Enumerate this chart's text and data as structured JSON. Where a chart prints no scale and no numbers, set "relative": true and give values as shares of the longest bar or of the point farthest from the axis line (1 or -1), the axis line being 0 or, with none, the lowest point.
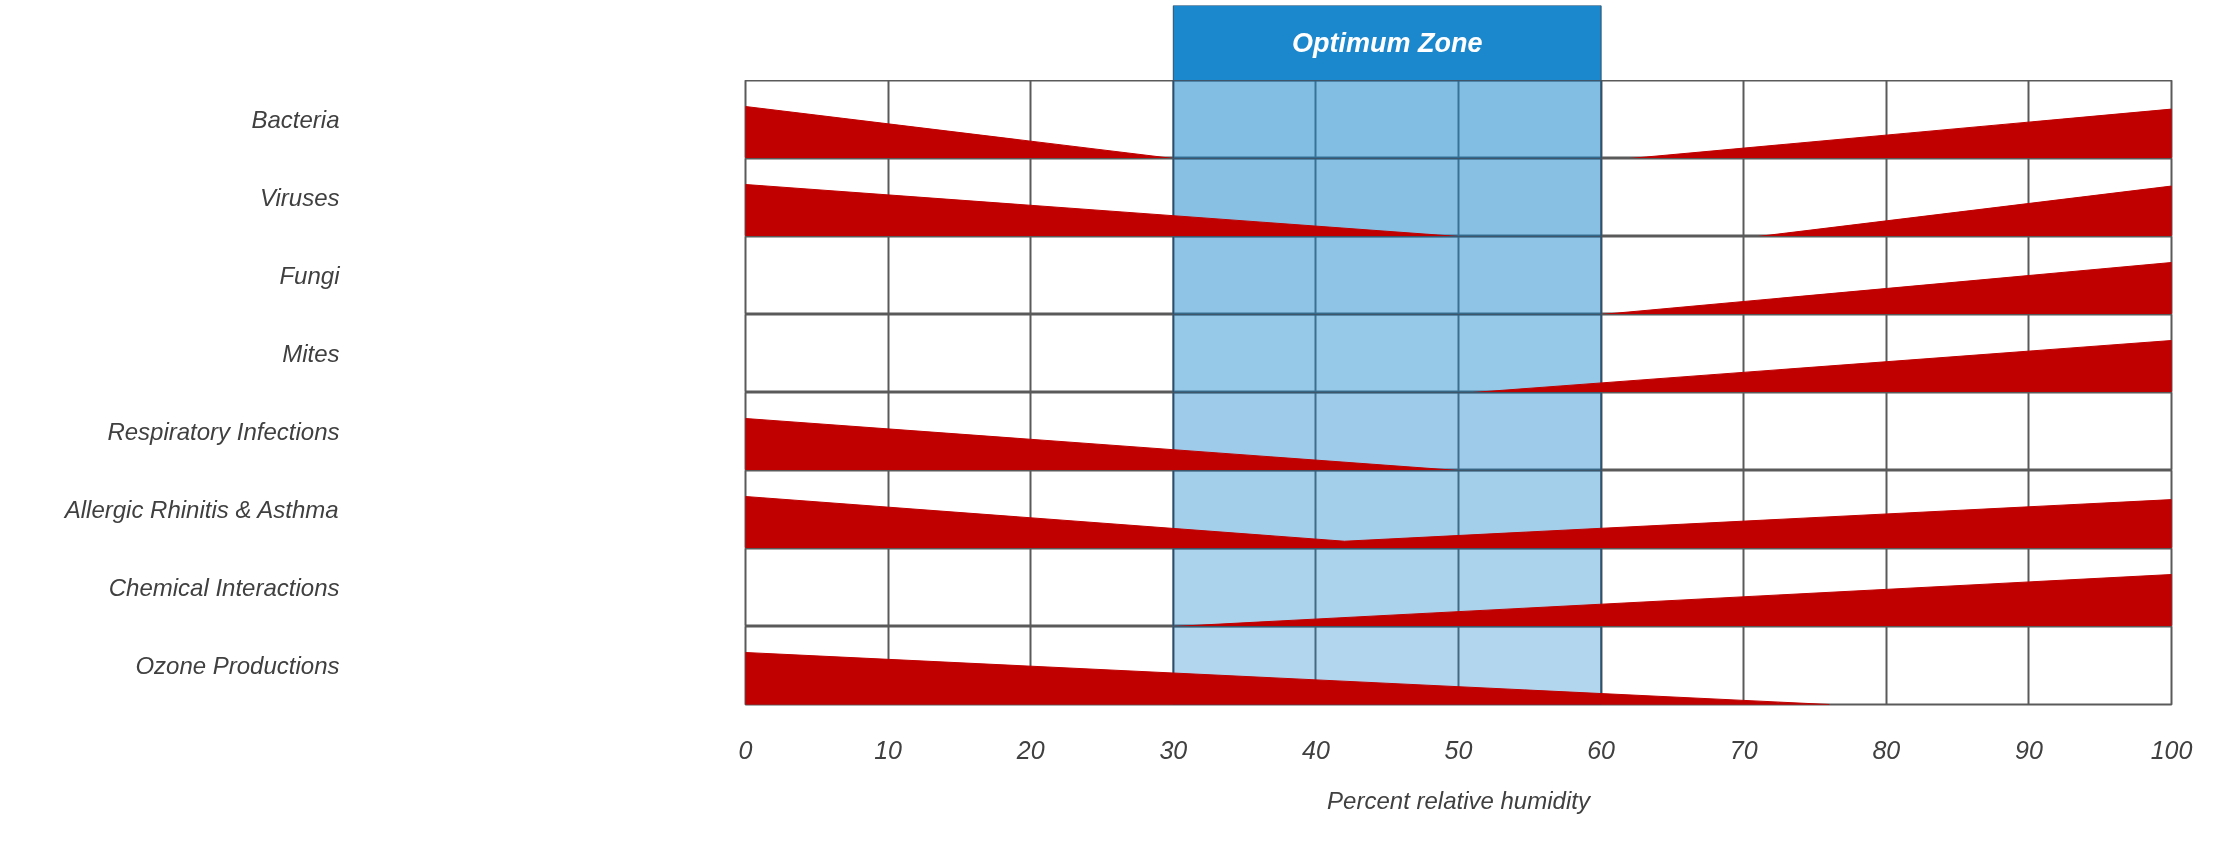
{
  "chart_data": [
    {
      "type": "area",
      "relative": true,
      "ylabel": "Bacteria",
      "x": [
        0,
        30,
        62,
        100
      ],
      "values": [
        1,
        0,
        0,
        0.95
      ],
      "color": "#c00000",
      "xlim": [
        0,
        100
      ],
      "xticks": [
        0,
        10,
        20,
        30,
        40,
        50,
        60,
        70,
        80,
        90,
        100
      ],
      "grid": "x",
      "tick_labels": false,
      "bands": [
        {
          "axis": "x",
          "from": 30,
          "to": 60,
          "label": "Optimum Zone",
          "color": "#1b87cc"
        }
      ]
    },
    {
      "type": "area",
      "relative": true,
      "ylabel": "Viruses",
      "x": [
        0,
        50,
        71,
        100
      ],
      "values": [
        1,
        0,
        0,
        0.97
      ],
      "color": "#c00000",
      "xlim": [
        0,
        100
      ],
      "xticks": [
        0,
        10,
        20,
        30,
        40,
        50,
        60,
        70,
        80,
        90,
        100
      ],
      "grid": "x",
      "tick_labels": false,
      "bands": [
        {
          "axis": "x",
          "from": 30,
          "to": 60,
          "color": "#1b87cc"
        }
      ]
    },
    {
      "type": "area",
      "relative": true,
      "ylabel": "Fungi",
      "x": [
        60,
        100
      ],
      "values": [
        0,
        1
      ],
      "color": "#c00000",
      "xlim": [
        0,
        100
      ],
      "xticks": [
        0,
        10,
        20,
        30,
        40,
        50,
        60,
        70,
        80,
        90,
        100
      ],
      "grid": "x",
      "tick_labels": false,
      "bands": [
        {
          "axis": "x",
          "from": 30,
          "to": 60,
          "color": "#1b87cc"
        }
      ]
    },
    {
      "type": "area",
      "relative": true,
      "ylabel": "Mites",
      "x": [
        51,
        100
      ],
      "values": [
        0,
        1
      ],
      "color": "#c00000",
      "xlim": [
        0,
        100
      ],
      "xticks": [
        0,
        10,
        20,
        30,
        40,
        50,
        60,
        70,
        80,
        90,
        100
      ],
      "grid": "x",
      "tick_labels": false,
      "bands": [
        {
          "axis": "x",
          "from": 30,
          "to": 60,
          "color": "#1b87cc"
        }
      ]
    },
    {
      "type": "area",
      "relative": true,
      "ylabel": "Respiratory Infections",
      "x": [
        0,
        50
      ],
      "values": [
        1,
        0
      ],
      "color": "#c00000",
      "xlim": [
        0,
        100
      ],
      "xticks": [
        0,
        10,
        20,
        30,
        40,
        50,
        60,
        70,
        80,
        90,
        100
      ],
      "grid": "x",
      "tick_labels": false,
      "bands": [
        {
          "axis": "x",
          "from": 30,
          "to": 60,
          "color": "#1b87cc"
        }
      ]
    },
    {
      "type": "area",
      "relative": true,
      "ylabel": "Allergic Rhinitis & Asthma",
      "x": [
        0,
        42,
        100
      ],
      "values": [
        1,
        0.14,
        0.94
      ],
      "color": "#c00000",
      "xlim": [
        0,
        100
      ],
      "xticks": [
        0,
        10,
        20,
        30,
        40,
        50,
        60,
        70,
        80,
        90,
        100
      ],
      "grid": "x",
      "tick_labels": false,
      "bands": [
        {
          "axis": "x",
          "from": 30,
          "to": 60,
          "color": "#1b87cc"
        }
      ]
    },
    {
      "type": "area",
      "relative": true,
      "ylabel": "Chemical Interactions",
      "x": [
        30,
        100
      ],
      "values": [
        0,
        1
      ],
      "color": "#c00000",
      "xlim": [
        0,
        100
      ],
      "xticks": [
        0,
        10,
        20,
        30,
        40,
        50,
        60,
        70,
        80,
        90,
        100
      ],
      "grid": "x",
      "tick_labels": false,
      "bands": [
        {
          "axis": "x",
          "from": 30,
          "to": 60,
          "color": "#1b87cc"
        }
      ]
    },
    {
      "type": "area",
      "relative": true,
      "ylabel": "Ozone Productions",
      "xlabel": "Percent relative humidity",
      "x": [
        0,
        76
      ],
      "values": [
        1,
        0
      ],
      "color": "#c00000",
      "xlim": [
        0,
        100
      ],
      "xticks": [
        0,
        10,
        20,
        30,
        40,
        50,
        60,
        70,
        80,
        90,
        100
      ],
      "grid": "x",
      "tick_labels": "x",
      "bands": [
        {
          "axis": "x",
          "from": 30,
          "to": 60,
          "color": "#1b87cc"
        }
      ]
    }
  ]
}
